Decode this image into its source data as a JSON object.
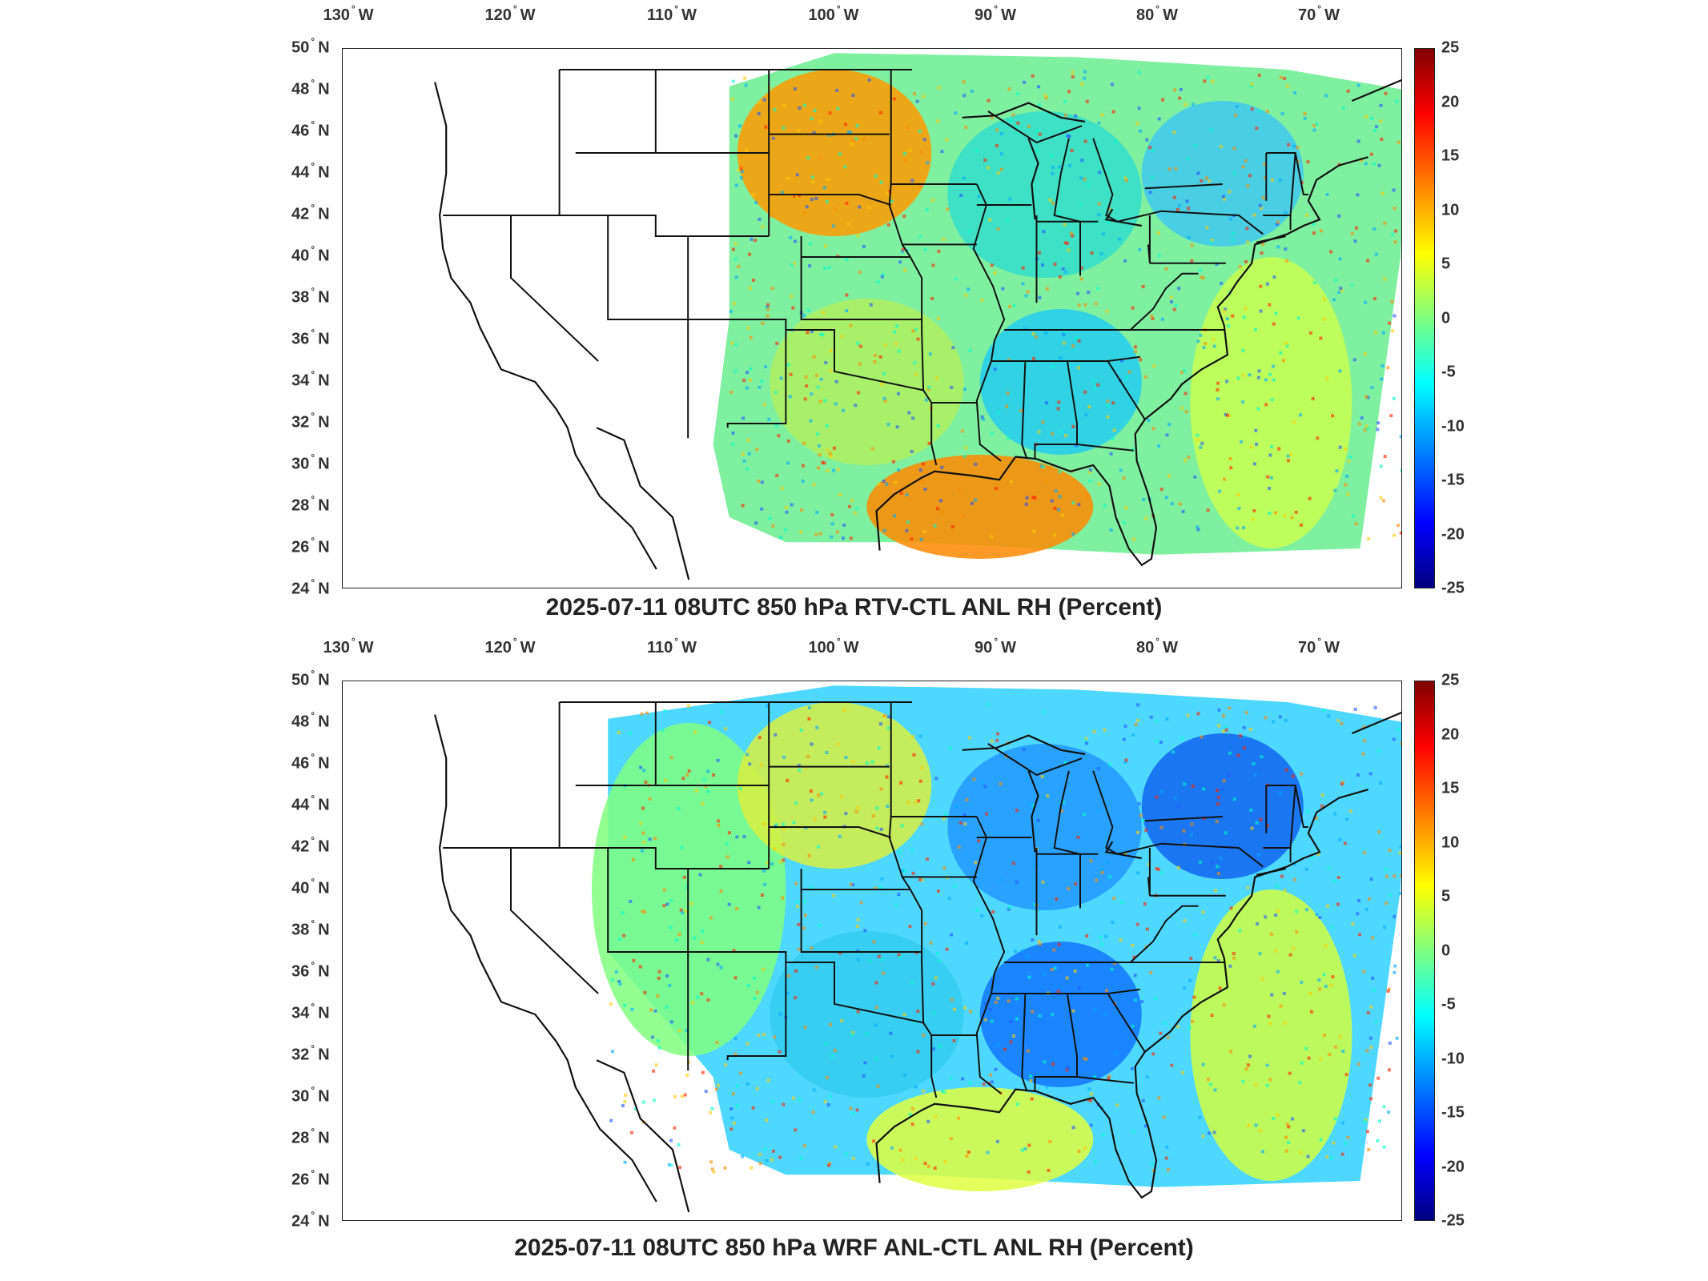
{
  "axes": {
    "lon_ticks": [
      {
        "value": -130,
        "num": "130",
        "hemi": "W"
      },
      {
        "value": -120,
        "num": "120",
        "hemi": "W"
      },
      {
        "value": -110,
        "num": "110",
        "hemi": "W"
      },
      {
        "value": -100,
        "num": "100",
        "hemi": "W"
      },
      {
        "value": -90,
        "num": "90",
        "hemi": "W"
      },
      {
        "value": -80,
        "num": "80",
        "hemi": "W"
      },
      {
        "value": -70,
        "num": "70",
        "hemi": "W"
      }
    ],
    "lat_ticks": [
      {
        "value": 50,
        "num": "50",
        "hemi": "N"
      },
      {
        "value": 48,
        "num": "48",
        "hemi": "N"
      },
      {
        "value": 46,
        "num": "46",
        "hemi": "N"
      },
      {
        "value": 44,
        "num": "44",
        "hemi": "N"
      },
      {
        "value": 42,
        "num": "42",
        "hemi": "N"
      },
      {
        "value": 40,
        "num": "40",
        "hemi": "N"
      },
      {
        "value": 38,
        "num": "38",
        "hemi": "N"
      },
      {
        "value": 36,
        "num": "36",
        "hemi": "N"
      },
      {
        "value": 34,
        "num": "34",
        "hemi": "N"
      },
      {
        "value": 32,
        "num": "32",
        "hemi": "N"
      },
      {
        "value": 30,
        "num": "30",
        "hemi": "N"
      },
      {
        "value": 28,
        "num": "28",
        "hemi": "N"
      },
      {
        "value": 26,
        "num": "26",
        "hemi": "N"
      },
      {
        "value": 24,
        "num": "24",
        "hemi": "N"
      }
    ]
  },
  "colorbar": {
    "min": -25,
    "max": 25,
    "ticks": [
      "25",
      "20",
      "15",
      "10",
      "5",
      "0",
      "-5",
      "-10",
      "-15",
      "-20",
      "-25"
    ],
    "colormap": "jet"
  },
  "panels": [
    {
      "title": "2025-07-11 08UTC 850 hPa RTV-CTL ANL RH (Percent)",
      "regions": [
        {
          "name": "northern-plains",
          "color": "#ff9a00"
        },
        {
          "name": "great-lakes",
          "color": "#33ddcc"
        },
        {
          "name": "southern-plains",
          "color": "#b0f060"
        },
        {
          "name": "southeast",
          "color": "#22ccee"
        },
        {
          "name": "gulf",
          "color": "#ff8800"
        },
        {
          "name": "atlantic",
          "color": "#c8ff50"
        },
        {
          "name": "northeast",
          "color": "#40c8f0"
        }
      ]
    },
    {
      "title": "2025-07-11 08UTC 850 hPa WRF ANL-CTL ANL RH (Percent)",
      "regions": [
        {
          "name": "rockies",
          "color": "#80ff80"
        },
        {
          "name": "northern-plains",
          "color": "#d8f040"
        },
        {
          "name": "great-lakes",
          "color": "#2299ff"
        },
        {
          "name": "southern-plains",
          "color": "#33ccee"
        },
        {
          "name": "southeast",
          "color": "#1177ff"
        },
        {
          "name": "gulf",
          "color": "#e0ff40"
        },
        {
          "name": "atlantic",
          "color": "#d0ff40"
        },
        {
          "name": "northeast",
          "color": "#1166ee"
        }
      ]
    }
  ]
}
